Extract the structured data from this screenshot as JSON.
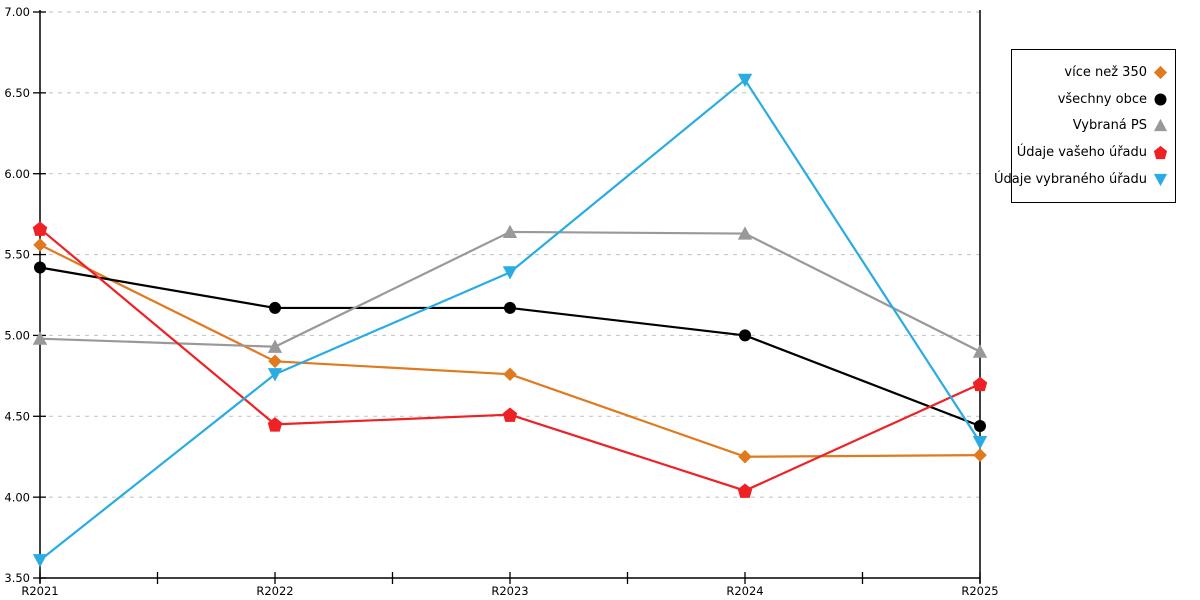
{
  "chart_data": {
    "type": "line",
    "title": "",
    "xlabel": "",
    "ylabel": "",
    "categories": [
      "R2021",
      "R2022",
      "R2023",
      "R2024",
      "R2025"
    ],
    "series": [
      {
        "name": "více než 350",
        "color": "#e07a1e",
        "marker": "diamond",
        "values": [
          5.56,
          4.84,
          4.76,
          4.25,
          4.26
        ]
      },
      {
        "name": "všechny obce",
        "color": "#000000",
        "marker": "circle",
        "values": [
          5.42,
          5.17,
          5.17,
          5.0,
          4.44
        ]
      },
      {
        "name": "Vybraná PS",
        "color": "#999999",
        "marker": "triangle-up",
        "values": [
          4.98,
          4.93,
          5.64,
          5.63,
          4.9
        ]
      },
      {
        "name": "Údaje vašeho úřadu",
        "color": "#ee2125",
        "marker": "pentagon",
        "values": [
          5.66,
          4.45,
          4.51,
          4.04,
          4.7
        ]
      },
      {
        "name": "Údaje vybraného úřadu",
        "color": "#29ace3",
        "marker": "triangle-down",
        "values": [
          3.61,
          4.76,
          5.39,
          6.58,
          4.34
        ]
      }
    ],
    "ylim": [
      3.5,
      7.0
    ],
    "ytick_step": 0.5,
    "yticks": [
      {
        "value": 7.0,
        "label": "7.00"
      },
      {
        "value": 6.5,
        "label": "6.50"
      },
      {
        "value": 6.0,
        "label": "6.00"
      },
      {
        "value": 5.5,
        "label": "5.50"
      },
      {
        "value": 5.0,
        "label": "5.00"
      },
      {
        "value": 4.5,
        "label": "4.50"
      },
      {
        "value": 4.0,
        "label": "4.00"
      },
      {
        "value": 3.5,
        "label": "3.50"
      }
    ],
    "grid": "horizontal-dashed",
    "gridline_color": "#c9c9c9",
    "axis_color": "#000000",
    "legend_position": "right-outside"
  }
}
